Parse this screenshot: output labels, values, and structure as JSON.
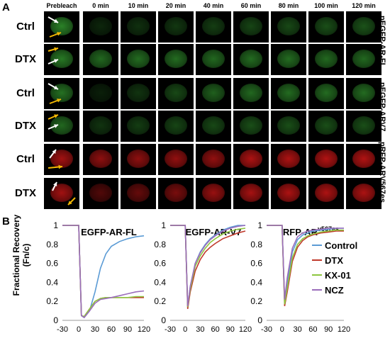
{
  "panel_a": {
    "letter": "A",
    "timepoints": [
      "Prebleach",
      "0 min",
      "10 min",
      "20 min",
      "40 min",
      "60 min",
      "80 min",
      "100 min",
      "120 min"
    ],
    "rows": [
      {
        "label": "Ctrl",
        "channel": "green",
        "nucleus_intensity": [
          0.75,
          0.22,
          0.28,
          0.32,
          0.35,
          0.4,
          0.42,
          0.45,
          0.48
        ]
      },
      {
        "label": "DTX",
        "channel": "green",
        "nucleus_intensity": [
          0.7,
          0.6,
          0.62,
          0.62,
          0.6,
          0.62,
          0.62,
          0.6,
          0.6
        ]
      },
      {
        "label": "Ctrl",
        "channel": "green",
        "nucleus_intensity": [
          0.65,
          0.18,
          0.3,
          0.42,
          0.55,
          0.6,
          0.62,
          0.62,
          0.62
        ]
      },
      {
        "label": "DTX",
        "channel": "green",
        "nucleus_intensity": [
          0.6,
          0.3,
          0.35,
          0.4,
          0.42,
          0.45,
          0.45,
          0.45,
          0.45
        ]
      },
      {
        "label": "Ctrl",
        "channel": "red",
        "nucleus_intensity": [
          0.8,
          0.7,
          0.7,
          0.72,
          0.72,
          0.85,
          0.85,
          0.88,
          0.88
        ]
      },
      {
        "label": "DTX",
        "channel": "red",
        "nucleus_intensity": [
          0.8,
          0.4,
          0.5,
          0.6,
          0.75,
          0.82,
          0.85,
          0.85,
          0.85
        ]
      }
    ],
    "side_labels": [
      "pEGFP-AR-FL",
      "pEGFP-ARV7",
      "pRFP-ARV567es"
    ],
    "colors": {
      "green": "#3fbf3a",
      "red": "#e01818",
      "white_arrow": "#ffffff",
      "yellow_arrow": "#f2b705"
    }
  },
  "panel_b": {
    "letter": "B",
    "ylabel_line1": "Fractional Recovery",
    "ylabel_line2": "(Fn/c)",
    "legend_entries": [
      "Control",
      "DTX",
      "KX-01",
      "NCZ"
    ]
  },
  "chart_data": [
    {
      "type": "line",
      "title": "EGFP-AR-FL",
      "ylabel": "Fractional Recovery (Fn/c)",
      "xlim": [
        -30,
        120
      ],
      "ylim": [
        0,
        1
      ],
      "xticks": [
        -30,
        0,
        30,
        60,
        90,
        120
      ],
      "yticks": [
        0,
        0.2,
        0.4,
        0.6,
        0.8,
        1
      ],
      "x": [
        -30,
        0,
        5,
        10,
        20,
        30,
        40,
        50,
        60,
        75,
        90,
        105,
        120
      ],
      "series": [
        {
          "name": "Control",
          "color": "#5b9bd5",
          "values": [
            1,
            1,
            0.05,
            0.03,
            0.1,
            0.3,
            0.55,
            0.7,
            0.78,
            0.83,
            0.86,
            0.88,
            0.89
          ]
        },
        {
          "name": "DTX",
          "color": "#c0392b",
          "values": [
            1,
            1,
            0.05,
            0.04,
            0.12,
            0.2,
            0.23,
            0.24,
            0.24,
            0.24,
            0.24,
            0.24,
            0.24
          ]
        },
        {
          "name": "KX-01",
          "color": "#8dc63f",
          "values": [
            1,
            1,
            0.05,
            0.04,
            0.12,
            0.2,
            0.23,
            0.24,
            0.24,
            0.24,
            0.24,
            0.25,
            0.25
          ]
        },
        {
          "name": "NCZ",
          "color": "#9b6dbb",
          "values": [
            1,
            1,
            0.05,
            0.03,
            0.1,
            0.18,
            0.22,
            0.23,
            0.24,
            0.26,
            0.28,
            0.3,
            0.31
          ]
        }
      ]
    },
    {
      "type": "line",
      "title": "EGFP-AR-V7",
      "xlim": [
        -30,
        120
      ],
      "ylim": [
        0,
        1
      ],
      "xticks": [
        -30,
        0,
        30,
        60,
        90,
        120
      ],
      "yticks": [
        0,
        0.2,
        0.4,
        0.6,
        0.8,
        1
      ],
      "x": [
        -30,
        0,
        5,
        10,
        20,
        30,
        40,
        50,
        60,
        75,
        90,
        105,
        120
      ],
      "series": [
        {
          "name": "Control",
          "color": "#5b9bd5",
          "values": [
            1,
            1,
            0.15,
            0.35,
            0.6,
            0.72,
            0.8,
            0.86,
            0.9,
            0.95,
            0.98,
            1.0,
            1.0
          ]
        },
        {
          "name": "DTX",
          "color": "#c0392b",
          "values": [
            1,
            1,
            0.12,
            0.3,
            0.52,
            0.64,
            0.72,
            0.77,
            0.81,
            0.86,
            0.89,
            0.92,
            0.94
          ]
        },
        {
          "name": "KX-01",
          "color": "#8dc63f",
          "values": [
            1,
            1,
            0.14,
            0.33,
            0.57,
            0.68,
            0.76,
            0.82,
            0.86,
            0.91,
            0.94,
            0.96,
            0.97
          ]
        },
        {
          "name": "NCZ",
          "color": "#9b6dbb",
          "values": [
            1,
            1,
            0.15,
            0.36,
            0.6,
            0.71,
            0.79,
            0.85,
            0.89,
            0.94,
            0.97,
            0.99,
            1.0
          ]
        }
      ]
    },
    {
      "type": "line",
      "title": "RFP-AR",
      "title_superscript": "v567es",
      "xlim": [
        -30,
        120
      ],
      "ylim": [
        0,
        1
      ],
      "xticks": [
        -30,
        0,
        30,
        60,
        90,
        120
      ],
      "yticks": [
        0,
        0.2,
        0.4,
        0.6,
        0.8,
        1
      ],
      "x": [
        -30,
        0,
        5,
        10,
        20,
        30,
        40,
        50,
        60,
        75,
        90,
        105,
        120
      ],
      "series": [
        {
          "name": "Control",
          "color": "#5b9bd5",
          "values": [
            1,
            1,
            0.2,
            0.4,
            0.72,
            0.85,
            0.9,
            0.92,
            0.94,
            0.95,
            0.96,
            0.97,
            0.97
          ]
        },
        {
          "name": "DTX",
          "color": "#c0392b",
          "values": [
            1,
            1,
            0.15,
            0.3,
            0.62,
            0.77,
            0.84,
            0.88,
            0.9,
            0.92,
            0.93,
            0.94,
            0.94
          ]
        },
        {
          "name": "KX-01",
          "color": "#8dc63f",
          "values": [
            1,
            1,
            0.17,
            0.34,
            0.66,
            0.8,
            0.86,
            0.89,
            0.91,
            0.93,
            0.94,
            0.95,
            0.95
          ]
        },
        {
          "name": "NCZ",
          "color": "#9b6dbb",
          "values": [
            1,
            1,
            0.22,
            0.45,
            0.76,
            0.88,
            0.92,
            0.94,
            0.95,
            0.96,
            0.97,
            0.97,
            0.97
          ]
        }
      ]
    }
  ]
}
